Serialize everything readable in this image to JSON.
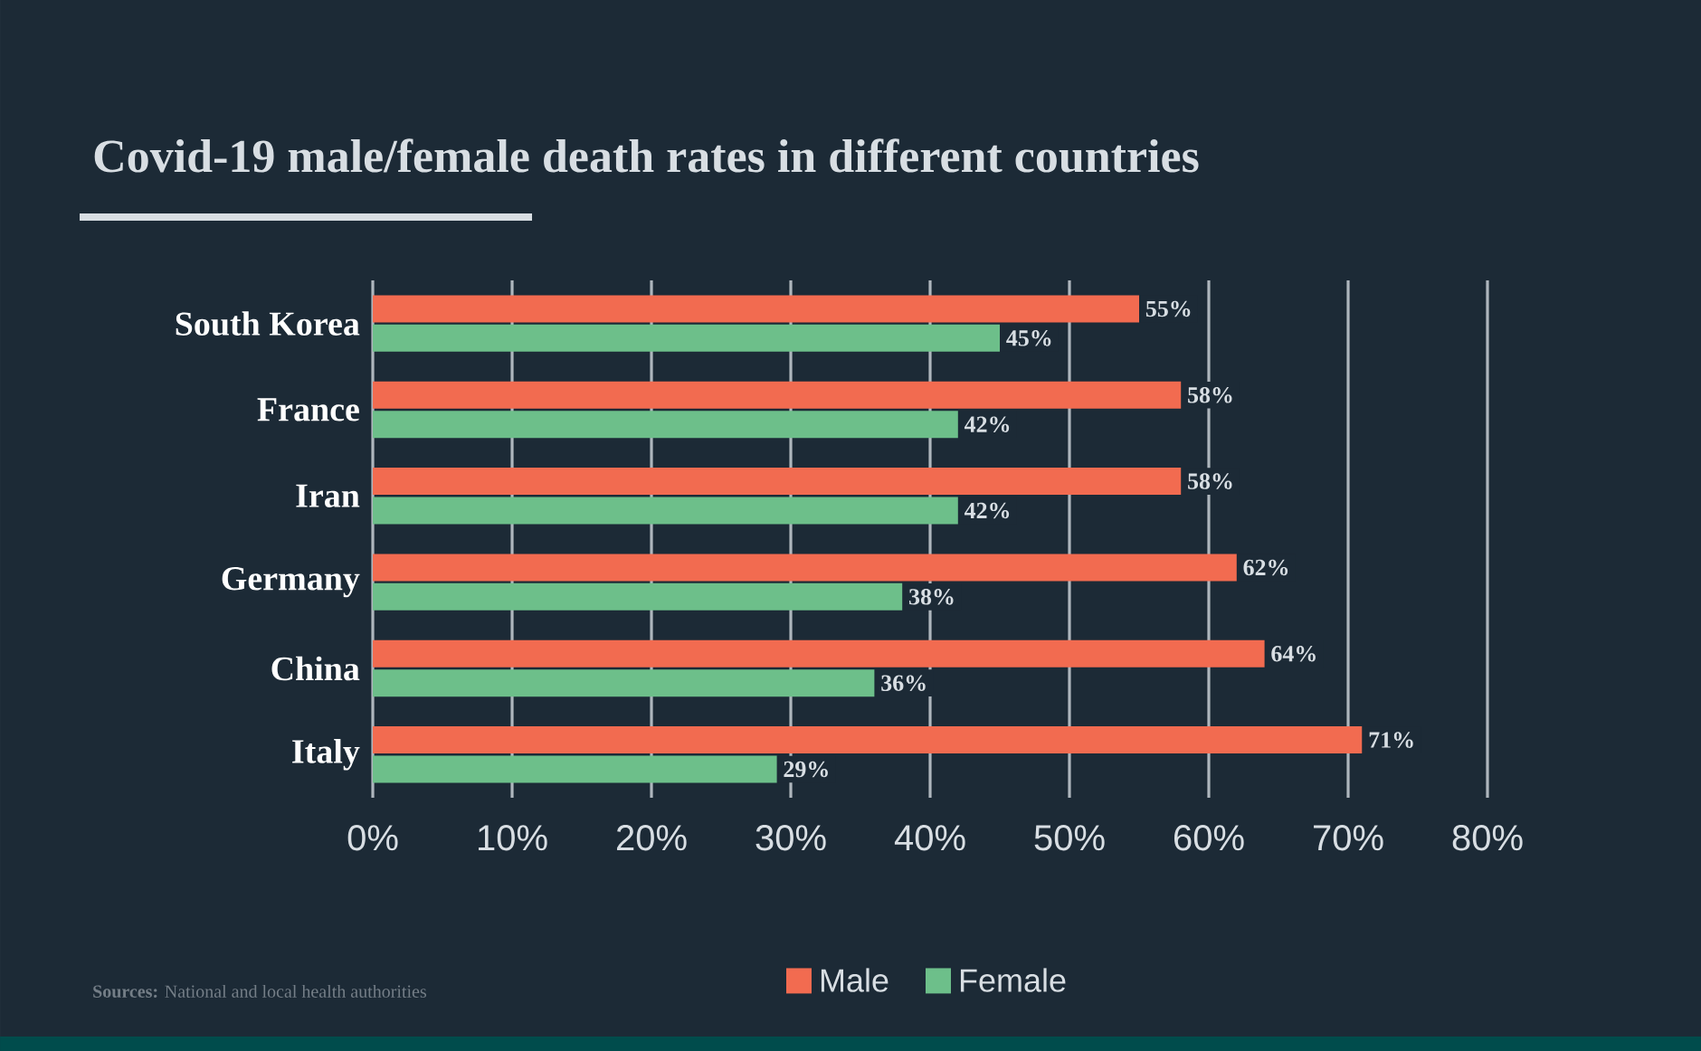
{
  "chart_data": {
    "type": "bar",
    "orientation": "horizontal",
    "title": "Covid-19 male/female death rates in different countries",
    "categories": [
      "South Korea",
      "France",
      "Iran",
      "Germany",
      "China",
      "Italy"
    ],
    "series": [
      {
        "name": "Male",
        "color": "#f26b50",
        "values": [
          55,
          58,
          58,
          62,
          64,
          71
        ],
        "value_labels": [
          "55%",
          "58%",
          "58%",
          "62%",
          "64%",
          "71%"
        ]
      },
      {
        "name": "Female",
        "color": "#6dbf8a",
        "values": [
          45,
          42,
          42,
          38,
          36,
          29
        ],
        "value_labels": [
          "45%",
          "42%",
          "42%",
          "38%",
          "36%",
          "29%"
        ]
      }
    ],
    "xlim": [
      0,
      80
    ],
    "xticks": [
      {
        "value": 0,
        "label": "0%"
      },
      {
        "value": 10,
        "label": "10%"
      },
      {
        "value": 20,
        "label": "20%"
      },
      {
        "value": 30,
        "label": "30%"
      },
      {
        "value": 40,
        "label": "40%"
      },
      {
        "value": 50,
        "label": "50%"
      },
      {
        "value": 60,
        "label": "60%"
      },
      {
        "value": 70,
        "label": "70%"
      },
      {
        "value": 80,
        "label": "80%"
      }
    ],
    "grid": "x",
    "legend": "bottom",
    "annotations": [
      "**Sources:** National and local health authorities"
    ]
  }
}
